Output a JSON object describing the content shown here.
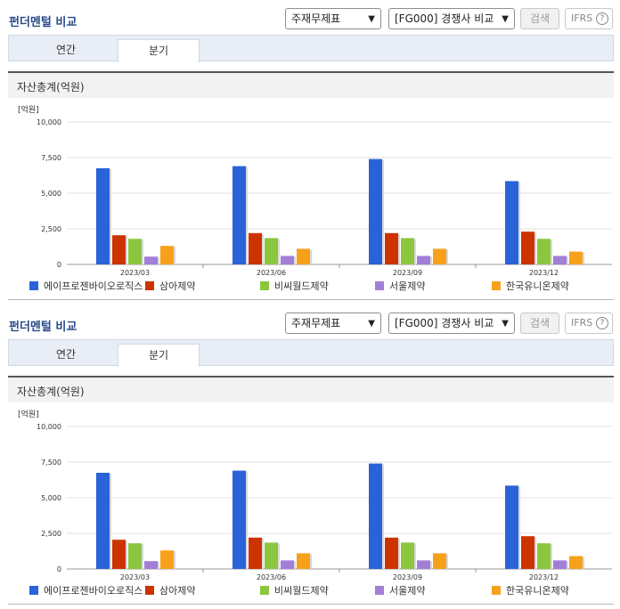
{
  "panels": [
    {
      "title": "펀더멘털 비교",
      "selects": [
        "주재무제표",
        "[FG000] 경쟁사 비교"
      ],
      "search_label": "검색",
      "ifrs_label": "IFRS",
      "help_icon": "?",
      "tabs": [
        "연간",
        "분기"
      ],
      "active_tab": 1,
      "section_title": "자산총계(억원)",
      "chart_data": {
        "type": "bar",
        "unit_label": "[억원]",
        "categories": [
          "2023/03",
          "2023/06",
          "2023/09",
          "2023/12"
        ],
        "ylim": [
          0,
          10000
        ],
        "yticks": [
          "10,000",
          "7,500",
          "5,000",
          "2,500",
          "0"
        ],
        "ytick_values": [
          10000,
          7500,
          5000,
          2500,
          0
        ],
        "legend_position": "bottom",
        "series": [
          {
            "name": "에이프로젠바이오로직스",
            "color": "#2a63d8",
            "values": [
              6750,
              6900,
              7400,
              5850
            ]
          },
          {
            "name": "삼아제약",
            "color": "#cc3300",
            "values": [
              2050,
              2200,
              2200,
              2300
            ]
          },
          {
            "name": "비씨월드제약",
            "color": "#8cc63f",
            "values": [
              1800,
              1850,
              1850,
              1800
            ]
          },
          {
            "name": "서울제약",
            "color": "#a27fd6",
            "values": [
              550,
              600,
              600,
              600
            ]
          },
          {
            "name": "한국유니온제약",
            "color": "#f7a11a",
            "values": [
              1300,
              1100,
              1100,
              900
            ]
          }
        ]
      }
    },
    {
      "title": "펀더멘털 비교",
      "selects": [
        "주재무제표",
        "[FG000] 경쟁사 비교"
      ],
      "search_label": "검색",
      "ifrs_label": "IFRS",
      "help_icon": "?",
      "tabs": [
        "연간",
        "분기"
      ],
      "active_tab": 1,
      "section_title": "자산총계(억원)",
      "chart_data": {
        "type": "bar",
        "unit_label": "[억원]",
        "categories": [
          "2023/03",
          "2023/06",
          "2023/09",
          "2023/12"
        ],
        "ylim": [
          0,
          10000
        ],
        "yticks": [
          "10,000",
          "7,500",
          "5,000",
          "2,500",
          "0"
        ],
        "ytick_values": [
          10000,
          7500,
          5000,
          2500,
          0
        ],
        "legend_position": "bottom",
        "series": [
          {
            "name": "에이프로젠바이오로직스",
            "color": "#2a63d8",
            "values": [
              6750,
              6900,
              7400,
              5850
            ]
          },
          {
            "name": "삼아제약",
            "color": "#cc3300",
            "values": [
              2050,
              2200,
              2200,
              2300
            ]
          },
          {
            "name": "비씨월드제약",
            "color": "#8cc63f",
            "values": [
              1800,
              1850,
              1850,
              1800
            ]
          },
          {
            "name": "서울제약",
            "color": "#a27fd6",
            "values": [
              550,
              600,
              600,
              600
            ]
          },
          {
            "name": "한국유니온제약",
            "color": "#f7a11a",
            "values": [
              1300,
              1100,
              1100,
              900
            ]
          }
        ]
      }
    }
  ]
}
